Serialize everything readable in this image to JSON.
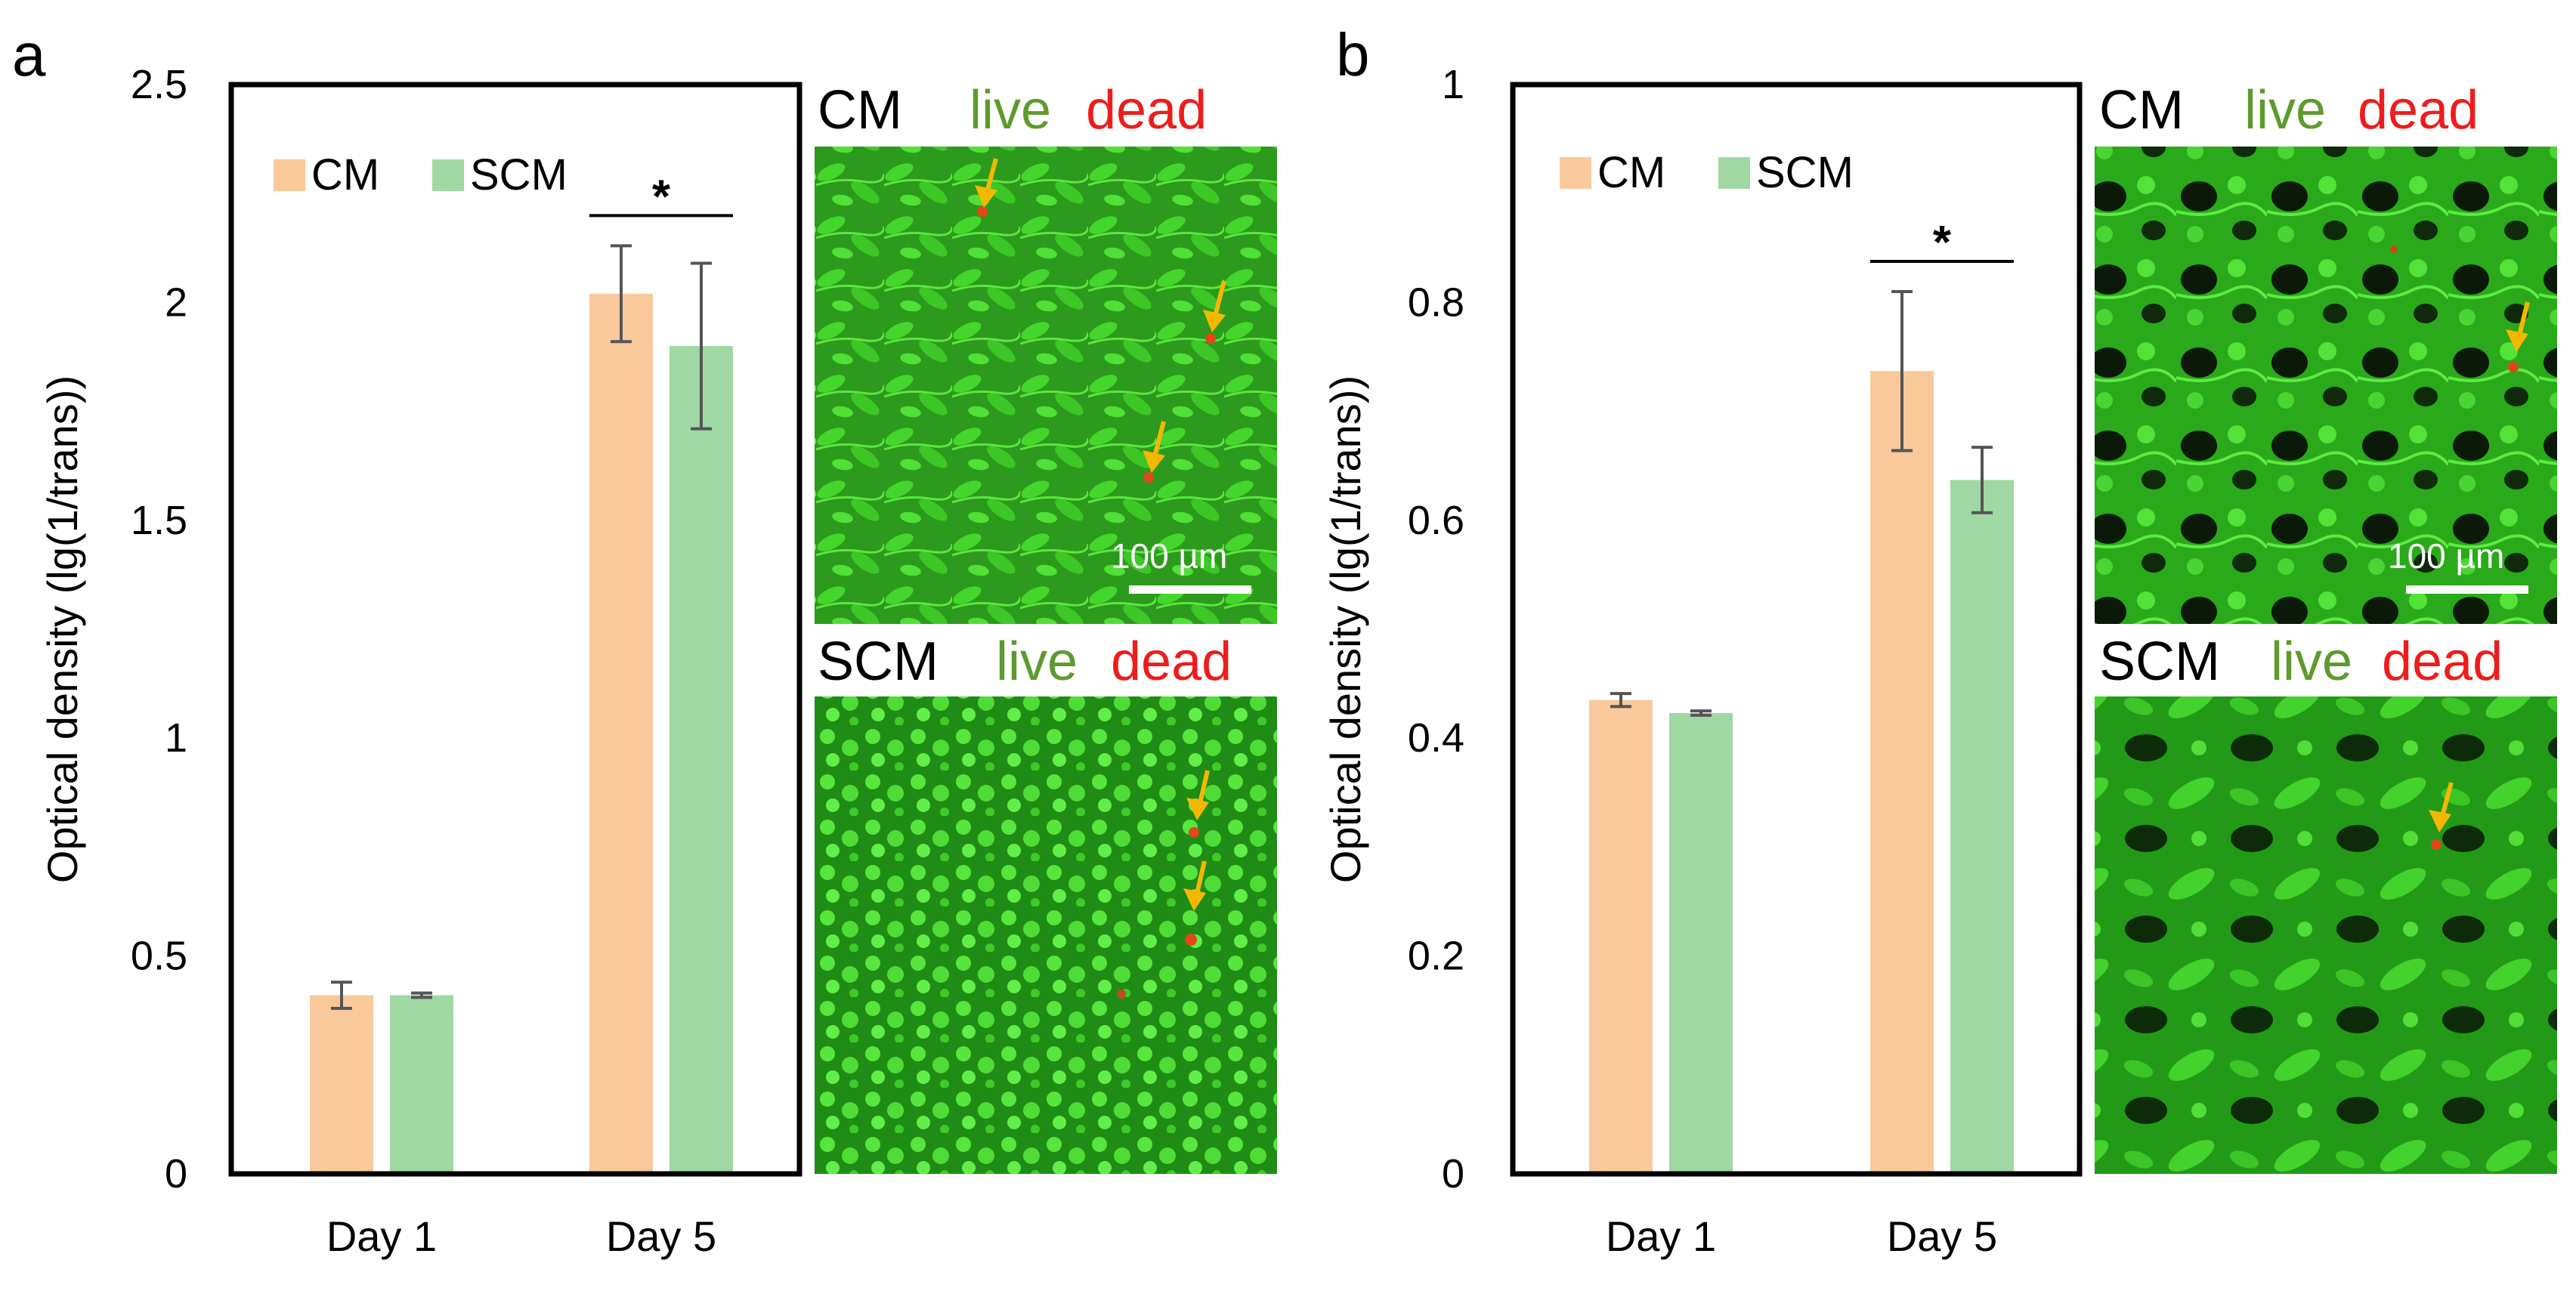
{
  "panels": [
    {
      "letter": "a"
    },
    {
      "letter": "b"
    }
  ],
  "chart_data": [
    {
      "type": "bar",
      "panel": "a",
      "ylabel": "Optical density (lg(1/trans))",
      "ylim": [
        0,
        2.5
      ],
      "yticks": [
        "0",
        "0.5",
        "1",
        "1.5",
        "2",
        "2.5"
      ],
      "yticks_values": [
        0,
        0.5,
        1,
        1.5,
        2,
        2.5
      ],
      "categories": [
        "Day 1",
        "Day 5"
      ],
      "series": [
        {
          "name": "CM",
          "color": "#F9C99C",
          "values": [
            0.41,
            2.02
          ],
          "errors": [
            0.03,
            0.11
          ]
        },
        {
          "name": "SCM",
          "color": "#A0D8A3",
          "values": [
            0.41,
            1.9
          ],
          "errors": [
            0.005,
            0.19
          ]
        }
      ],
      "significance": {
        "category": "Day 5",
        "label": "*"
      },
      "legend": "top-left",
      "images": [
        {
          "label": "CM",
          "live": "live",
          "dead": "dead",
          "scale": "100 µm"
        },
        {
          "label": "SCM",
          "live": "live",
          "dead": "dead"
        }
      ]
    },
    {
      "type": "bar",
      "panel": "b",
      "ylabel": "Optical density (lg(1/trans))",
      "ylim": [
        0,
        1
      ],
      "yticks": [
        "0",
        "0.2",
        "0.4",
        "0.6",
        "0.8",
        "1"
      ],
      "yticks_values": [
        0,
        0.2,
        0.4,
        0.6,
        0.8,
        1
      ],
      "categories": [
        "Day 1",
        "Day 5"
      ],
      "series": [
        {
          "name": "CM",
          "color": "#F9C99C",
          "values": [
            0.435,
            0.737
          ],
          "errors": [
            0.006,
            0.073
          ]
        },
        {
          "name": "SCM",
          "color": "#A0D8A3",
          "values": [
            0.423,
            0.637
          ],
          "errors": [
            0.002,
            0.03
          ]
        }
      ],
      "significance": {
        "category": "Day 5",
        "label": "*"
      },
      "legend": "top-left",
      "images": [
        {
          "label": "CM",
          "live": "live",
          "dead": "dead",
          "scale": "100 µm"
        },
        {
          "label": "SCM",
          "live": "live",
          "dead": "dead"
        }
      ]
    }
  ],
  "colors": {
    "live": "#5E9A2E",
    "dead": "#EE1C1C",
    "arrow": "#F5B800",
    "axis": "#000000",
    "error": "#555555"
  }
}
